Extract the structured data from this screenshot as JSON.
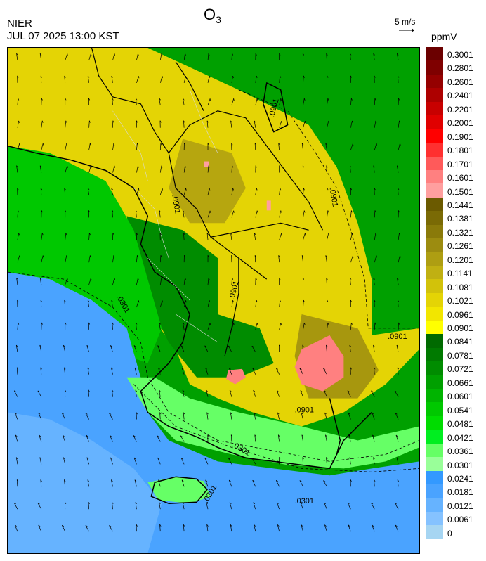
{
  "header": {
    "agency": "NIER",
    "timestamp": "JUL 07 2025 13:00 KST",
    "title_main": "O",
    "title_sub": "3",
    "wind_scale": "5 m/s",
    "unit": "ppmV"
  },
  "map": {
    "contour_labels": [
      ".0901",
      ".0901",
      ".0901",
      ".0901",
      ".0301",
      ".0301",
      ".0301",
      ".0901",
      ".0901",
      ".0301"
    ]
  },
  "legend": {
    "labels": [
      "0.3001",
      "0.2801",
      "0.2601",
      "0.2401",
      "0.2201",
      "0.2001",
      "0.1901",
      "0.1801",
      "0.1701",
      "0.1601",
      "0.1501",
      "0.1441",
      "0.1381",
      "0.1321",
      "0.1261",
      "0.1201",
      "0.1141",
      "0.1081",
      "0.1021",
      "0.0961",
      "0.0901",
      "0.0841",
      "0.0781",
      "0.0721",
      "0.0661",
      "0.0601",
      "0.0541",
      "0.0481",
      "0.0421",
      "0.0361",
      "0.0301",
      "0.0241",
      "0.0181",
      "0.0121",
      "0.0061",
      "0"
    ],
    "colors": [
      "#6b0000",
      "#7f0000",
      "#950000",
      "#ad0000",
      "#c80000",
      "#e00000",
      "#ff0000",
      "#ff3030",
      "#ff5a5a",
      "#ff8080",
      "#ff9f9f",
      "#6b5a00",
      "#7a6a05",
      "#8a7a0a",
      "#9c8c10",
      "#ae9e12",
      "#c0b012",
      "#d2c20a",
      "#e4d405",
      "#f2e600",
      "#ffff00",
      "#006a00",
      "#007a00",
      "#008c00",
      "#00a000",
      "#00b400",
      "#00c800",
      "#00dc00",
      "#00ee20",
      "#66ff66",
      "#99ff99",
      "#3399ff",
      "#4aa3ff",
      "#66b3ff",
      "#85c2ff",
      "#a6d5f2"
    ]
  }
}
